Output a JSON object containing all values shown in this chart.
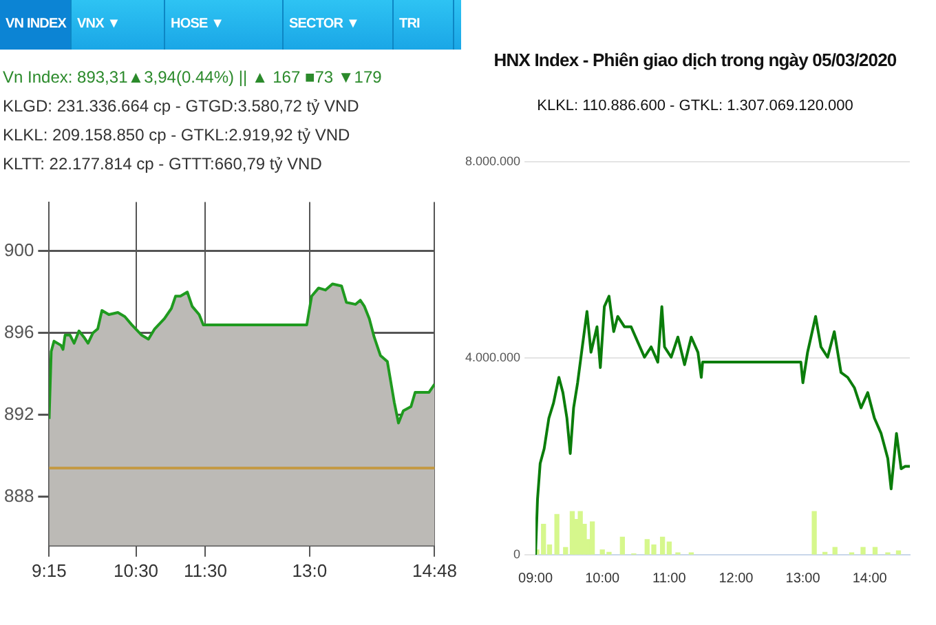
{
  "chart_data": [
    {
      "type": "area",
      "annotations": [
        "VN INDEX",
        "VNX ▼",
        "HOSE ▼",
        "SECTOR ▼",
        "TRI",
        "Vn Index: 893,31▲3,94(0.44%) || ▲ 167 ■73 ▼179",
        "KLGD: 231.336.664 cp - GTGD:3.580,72 tỷ VND",
        "KLKL: 209.158.850 cp - GTKL:2.919,92 tỷ VND",
        "KLTT: 22.177.814 cp - GTTT:660,79 tỷ VND"
      ],
      "x": [
        9.25,
        9.28,
        9.32,
        9.42,
        9.45,
        9.48,
        9.55,
        9.61,
        9.68,
        9.75,
        9.81,
        9.88,
        9.95,
        10.01,
        10.11,
        10.24,
        10.34,
        10.44,
        10.58,
        10.68,
        10.77,
        10.91,
        11.01,
        11.07,
        11.14,
        11.24,
        11.31,
        11.41,
        11.47,
        12.96,
        13.03,
        13.13,
        13.23,
        13.33,
        13.46,
        13.53,
        13.66,
        13.73,
        13.79,
        13.86,
        13.93,
        14.02,
        14.12,
        14.19,
        14.22,
        14.28,
        14.35,
        14.46,
        14.52,
        14.72,
        14.8
      ],
      "series": [
        {
          "color": "#1f9a1f",
          "values": [
            891.8,
            895.1,
            895.6,
            895.4,
            895.2,
            895.9,
            895.9,
            895.5,
            896.1,
            895.8,
            895.5,
            896.0,
            896.2,
            897.1,
            896.9,
            897.0,
            896.8,
            896.4,
            895.9,
            895.7,
            896.2,
            896.7,
            897.2,
            897.8,
            897.8,
            898.0,
            897.3,
            896.9,
            896.4,
            896.4,
            897.8,
            898.2,
            898.1,
            898.4,
            898.3,
            897.5,
            897.4,
            897.6,
            897.3,
            896.7,
            895.8,
            894.9,
            894.6,
            893.2,
            892.6,
            891.6,
            892.2,
            892.4,
            893.1,
            893.1,
            893.5
          ]
        }
      ],
      "xlim": [
        9.25,
        14.8
      ],
      "xticks": [
        {
          "value": 9.25,
          "label": "9:15"
        },
        {
          "value": 10.5,
          "label": "10:30"
        },
        {
          "value": 11.5,
          "label": "11:30"
        },
        {
          "value": 13.0,
          "label": "13:0"
        },
        {
          "value": 14.8,
          "label": "14:48"
        }
      ],
      "ylim": [
        885.6,
        902.4
      ],
      "yticks": [
        888,
        892,
        896,
        900
      ],
      "ref_lines": [
        {
          "axis": "y",
          "value": 889.4,
          "color": "#c49a45"
        }
      ],
      "grid": true,
      "legend": false
    },
    {
      "type": "line",
      "title": "HNX Index - Phiên giao dịch trong ngày 05/03/2020",
      "subtitle": "KLKL: 110.886.600 - GTKL: 1.307.069.120.000",
      "series": [
        {
          "type": "line",
          "color": "#0b7d0b",
          "x": [
            9.0,
            9.03,
            9.07,
            9.13,
            9.2,
            9.27,
            9.35,
            9.41,
            9.47,
            9.52,
            9.57,
            9.63,
            9.7,
            9.77,
            9.83,
            9.92,
            9.97,
            10.03,
            10.1,
            10.17,
            10.23,
            10.33,
            10.43,
            10.53,
            10.63,
            10.73,
            10.83,
            10.89,
            10.93,
            11.03,
            11.13,
            11.23,
            11.33,
            11.43,
            11.48,
            11.5,
            12.97,
            13.0,
            13.07,
            13.19,
            13.27,
            13.37,
            13.47,
            13.57,
            13.67,
            13.77,
            13.87,
            13.97,
            14.07,
            14.17,
            14.27,
            14.32,
            14.4,
            14.47,
            14.53,
            14.6
          ],
          "values": [
            0,
            1130000,
            1860000,
            2160000,
            2780000,
            3090000,
            3610000,
            3300000,
            2780000,
            2060000,
            2990000,
            3500000,
            4230000,
            4950000,
            4120000,
            4640000,
            3810000,
            5050000,
            5260000,
            4540000,
            4850000,
            4640000,
            4640000,
            4330000,
            4020000,
            4230000,
            3920000,
            5050000,
            4230000,
            4020000,
            4430000,
            3870000,
            4430000,
            4120000,
            3610000,
            3920000,
            3920000,
            3500000,
            4120000,
            4850000,
            4230000,
            4020000,
            4540000,
            3710000,
            3610000,
            3400000,
            2990000,
            3300000,
            2780000,
            2470000,
            1960000,
            1340000,
            2470000,
            1750000,
            1800000,
            1800000
          ]
        },
        {
          "type": "bar",
          "color": "#d6f78c",
          "x": [
            9.02,
            9.12,
            9.21,
            9.32,
            9.45,
            9.55,
            9.6,
            9.67,
            9.73,
            9.79,
            9.85,
            10.0,
            10.1,
            10.3,
            10.47,
            10.67,
            10.77,
            10.9,
            11.0,
            11.13,
            11.33,
            13.17,
            13.33,
            13.48,
            13.73,
            13.9,
            14.08,
            14.27,
            14.43
          ],
          "values": [
            100000,
            620000,
            200000,
            820000,
            150000,
            880000,
            720000,
            880000,
            620000,
            310000,
            670000,
            100000,
            50000,
            360000,
            20000,
            310000,
            200000,
            360000,
            260000,
            40000,
            40000,
            880000,
            50000,
            150000,
            40000,
            150000,
            150000,
            40000,
            80000
          ]
        }
      ],
      "xlim": [
        9,
        14.6
      ],
      "xticks": [
        {
          "value": 9,
          "label": "09:00"
        },
        {
          "value": 10,
          "label": "10:00"
        },
        {
          "value": 11,
          "label": "11:00"
        },
        {
          "value": 12,
          "label": "12:00"
        },
        {
          "value": 13,
          "label": "13:00"
        },
        {
          "value": 14,
          "label": "14:00"
        }
      ],
      "ylim": [
        0,
        8000000
      ],
      "yticks": [
        0,
        {
          "value": 4000000,
          "label": "4.000.000"
        },
        {
          "value": 8000000,
          "label": "8.000.000"
        }
      ],
      "grid": "y",
      "legend": false
    }
  ]
}
